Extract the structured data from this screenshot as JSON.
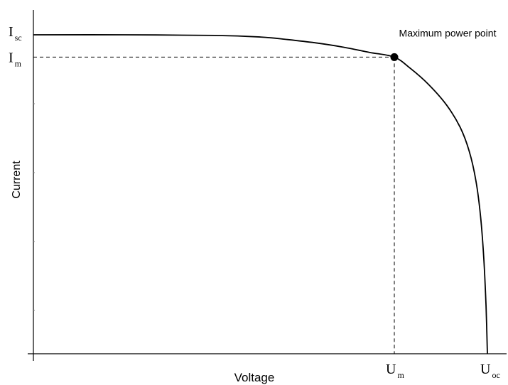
{
  "chart_data": {
    "type": "line",
    "xlabel": "Voltage",
    "ylabel": "Current",
    "xlim": [
      0,
      1
    ],
    "ylim": [
      0,
      1
    ],
    "series": [
      {
        "x": [
          0,
          0.2,
          0.4,
          0.5,
          0.56,
          0.62,
          0.68,
          0.74,
          0.795,
          0.83,
          0.87,
          0.91,
          0.94,
          0.96,
          0.975,
          0.985,
          0.992,
          0.997,
          1.0
        ],
        "y": [
          1.0,
          1.0,
          0.998,
          0.993,
          0.985,
          0.975,
          0.962,
          0.945,
          0.93,
          0.895,
          0.845,
          0.78,
          0.71,
          0.635,
          0.54,
          0.43,
          0.3,
          0.15,
          0.0
        ]
      }
    ],
    "tick_labels": {
      "x": [
        {
          "main": "U",
          "sub": "m",
          "value": 0.795
        },
        {
          "main": "U",
          "sub": "oc",
          "value": 1.0
        }
      ],
      "y": [
        {
          "main": "I",
          "sub": "sc",
          "value": 1.0
        },
        {
          "main": "I",
          "sub": "m",
          "value": 0.93
        }
      ]
    },
    "annotations": [
      {
        "text": "Maximum power point",
        "x": 0.795,
        "y": 0.93
      }
    ],
    "grid": false,
    "legend": "none"
  }
}
